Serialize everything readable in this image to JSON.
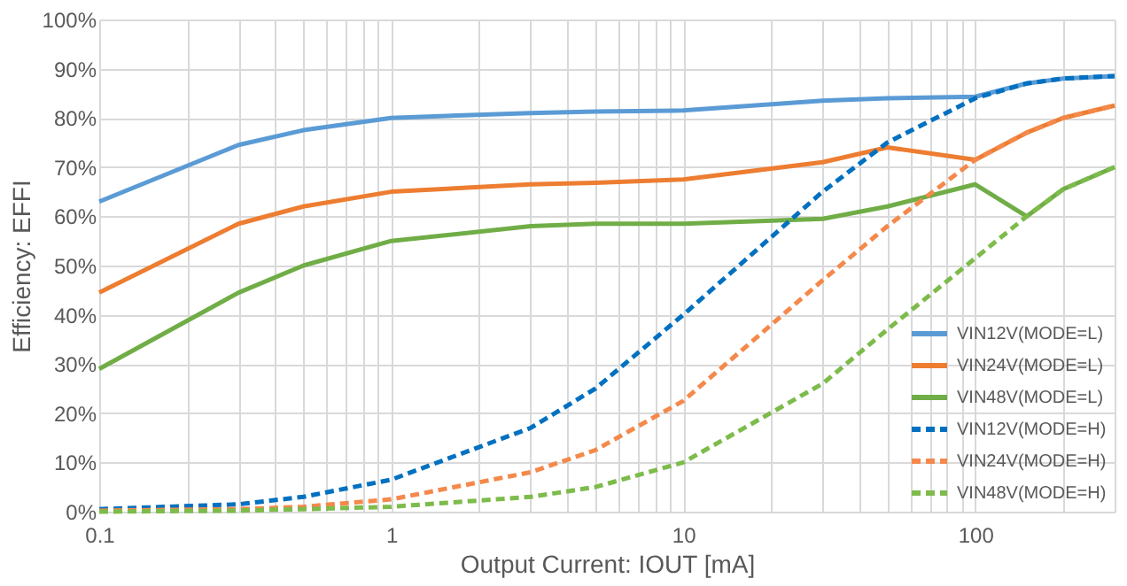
{
  "chart_data": {
    "type": "line",
    "xlabel": "Output Current: IOUT [mA]",
    "ylabel": "Efficiency: EFFI",
    "log": "x",
    "grid": true,
    "legend": "bottom right",
    "xlim": [
      0.1,
      300
    ],
    "ylim": [
      0,
      100
    ],
    "xticks": [
      0.1,
      1,
      10,
      100,
      {
        "value": 0.2,
        "label": null
      },
      {
        "value": 0.3,
        "label": null
      },
      {
        "value": 0.4,
        "label": null
      },
      {
        "value": 0.5,
        "label": null
      },
      {
        "value": 0.6,
        "label": null
      },
      {
        "value": 0.7,
        "label": null
      },
      {
        "value": 0.8,
        "label": null
      },
      {
        "value": 0.9,
        "label": null
      },
      {
        "value": 2,
        "label": null
      },
      {
        "value": 3,
        "label": null
      },
      {
        "value": 4,
        "label": null
      },
      {
        "value": 5,
        "label": null
      },
      {
        "value": 6,
        "label": null
      },
      {
        "value": 7,
        "label": null
      },
      {
        "value": 8,
        "label": null
      },
      {
        "value": 9,
        "label": null
      },
      {
        "value": 20,
        "label": null
      },
      {
        "value": 30,
        "label": null
      },
      {
        "value": 40,
        "label": null
      },
      {
        "value": 50,
        "label": null
      },
      {
        "value": 60,
        "label": null
      },
      {
        "value": 70,
        "label": null
      },
      {
        "value": 80,
        "label": null
      },
      {
        "value": 90,
        "label": null
      },
      {
        "value": 200,
        "label": null
      },
      {
        "value": 300,
        "label": null
      }
    ],
    "yticks": [
      {
        "value": 0,
        "label": "0%"
      },
      {
        "value": 10,
        "label": "10%"
      },
      {
        "value": 20,
        "label": "20%"
      },
      {
        "value": 30,
        "label": "30%"
      },
      {
        "value": 40,
        "label": "40%"
      },
      {
        "value": 50,
        "label": "50%"
      },
      {
        "value": 60,
        "label": "60%"
      },
      {
        "value": 70,
        "label": "70%"
      },
      {
        "value": 80,
        "label": "80%"
      },
      {
        "value": 90,
        "label": "90%"
      },
      {
        "value": 100,
        "label": "100%"
      }
    ],
    "x": [
      0.1,
      0.3,
      0.5,
      1,
      3,
      5,
      10,
      30,
      50,
      100,
      150,
      200,
      300
    ],
    "series": [
      {
        "name": "VIN12V(MODE=L)",
        "color": "#5b9bd5",
        "line_style": "solid",
        "values": [
          63,
          74.5,
          77.5,
          80,
          81,
          81.3,
          81.5,
          83.5,
          84,
          84.3,
          87,
          88,
          88.5
        ]
      },
      {
        "name": "VIN24V(MODE=L)",
        "color": "#ed7d31",
        "line_style": "solid",
        "values": [
          44.5,
          58.5,
          62,
          65,
          66.5,
          66.8,
          67.5,
          71,
          74,
          71.5,
          77,
          80,
          82.5
        ]
      },
      {
        "name": "VIN48V(MODE=L)",
        "color": "#70ad47",
        "line_style": "solid",
        "values": [
          29,
          44.5,
          50,
          55,
          58,
          58.5,
          58.5,
          59.5,
          62,
          66.5,
          60,
          65.5,
          70
        ]
      },
      {
        "name": "VIN12V(MODE=H)",
        "color": "#0070c0",
        "line_style": "dashed",
        "values": [
          0.5,
          1.5,
          3,
          6.5,
          17,
          25,
          40,
          65,
          75,
          84,
          87,
          88,
          88.5
        ]
      },
      {
        "name": "VIN24V(MODE=H)",
        "color": "#f4894b",
        "line_style": "dashed",
        "values": [
          0.2,
          0.5,
          1,
          2.5,
          8,
          12.5,
          22.5,
          47,
          58,
          71.5,
          77,
          80,
          82.5
        ]
      },
      {
        "name": "VIN48V(MODE=H)",
        "color": "#7dbb4b",
        "line_style": "dashed",
        "values": [
          0,
          0.2,
          0.5,
          1,
          3,
          5,
          10,
          26,
          37,
          51.5,
          60,
          65.5,
          70
        ]
      }
    ]
  }
}
